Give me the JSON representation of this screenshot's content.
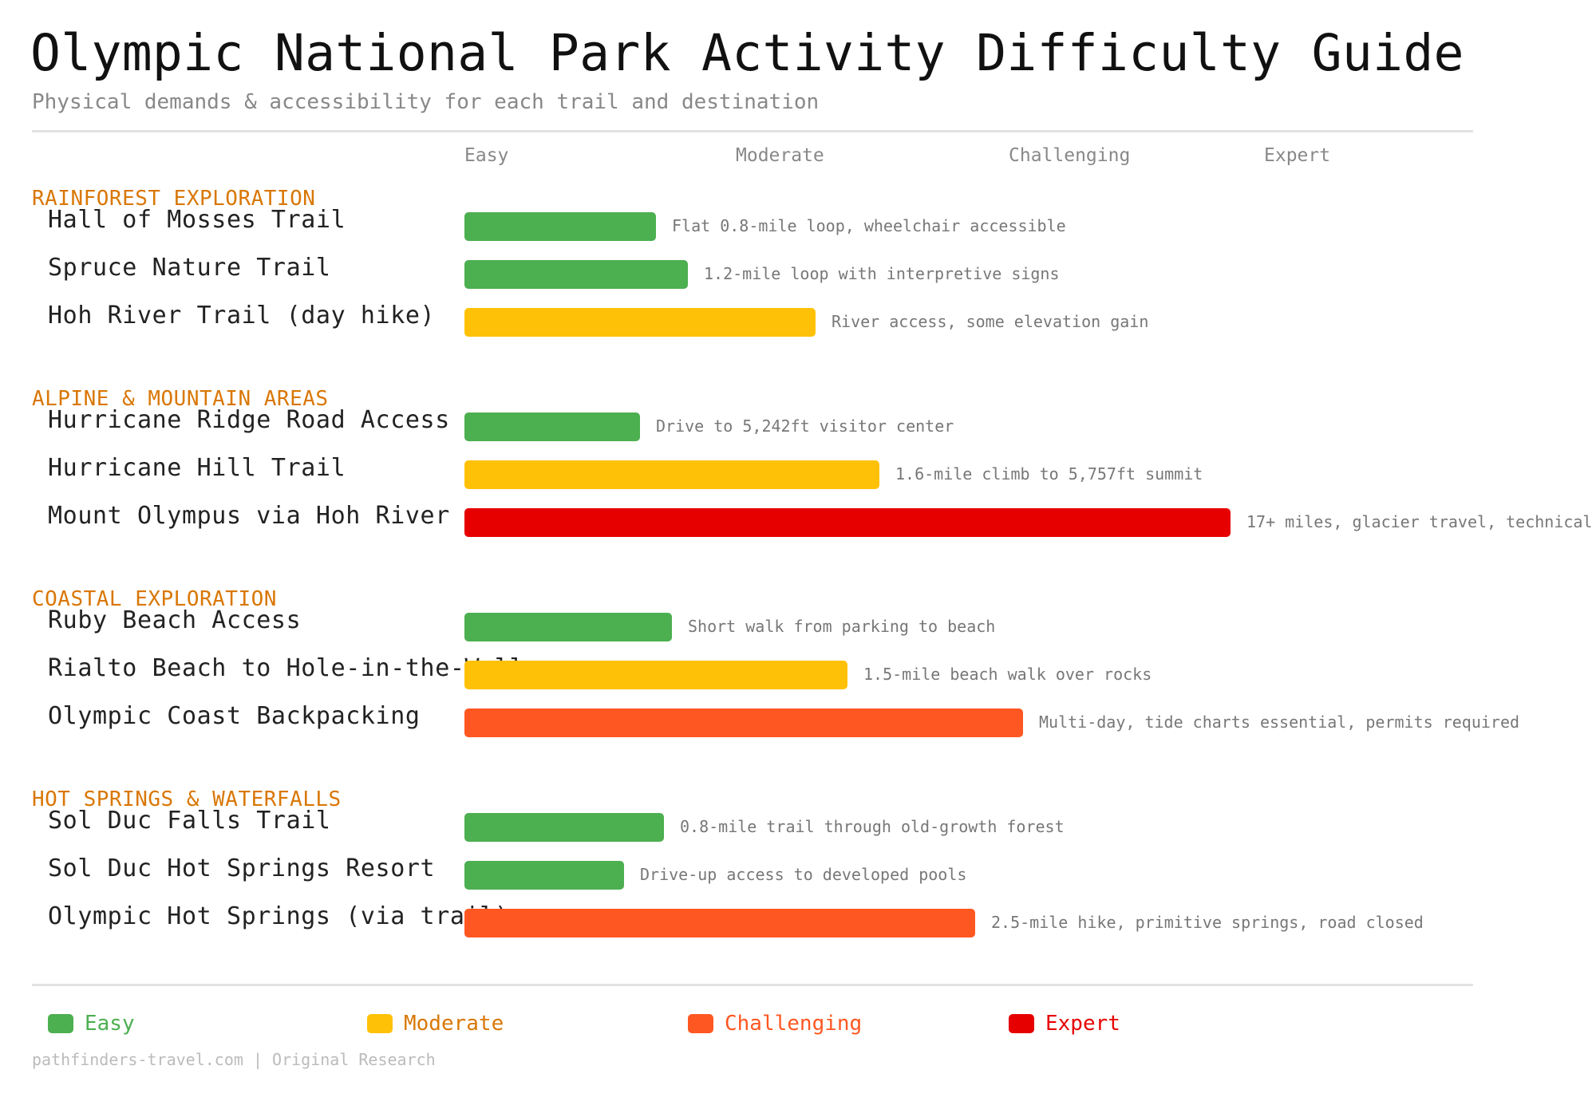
{
  "title": "Olympic National Park Activity Difficulty Guide",
  "subtitle": "Physical demands & accessibility for each trail and destination",
  "chart_data": {
    "type": "bar",
    "orientation": "horizontal",
    "title": "Olympic National Park Activity Difficulty Guide",
    "subtitle": "Physical demands & accessibility for each trail and destination",
    "scale_labels": [
      "Easy",
      "Moderate",
      "Challenging",
      "Expert"
    ],
    "xlim": [
      0,
      100
    ],
    "grid": false,
    "legend_placement": "bottom",
    "level_colors": {
      "Easy": "#4caf50",
      "Moderate": "#ffc107",
      "Challenging": "#ff5722",
      "Expert": "#e60000"
    },
    "legend_text_colors": {
      "Easy": "#4caf50",
      "Moderate": "#d97706",
      "Challenging": "#ff5722",
      "Expert": "#e60000"
    },
    "section_color": "#d97706",
    "sections": [
      {
        "name": "RAINFOREST EXPLORATION",
        "items": [
          {
            "name": "Hall of Mosses Trail",
            "level": "Easy",
            "value": 24,
            "note": "Flat 0.8-mile loop, wheelchair accessible"
          },
          {
            "name": "Spruce Nature Trail",
            "level": "Easy",
            "value": 28,
            "note": "1.2-mile loop with interpretive signs"
          },
          {
            "name": "Hoh River Trail (day hike)",
            "level": "Moderate",
            "value": 44,
            "note": "River access, some elevation gain"
          }
        ]
      },
      {
        "name": "ALPINE & MOUNTAIN AREAS",
        "items": [
          {
            "name": "Hurricane Ridge Road Access",
            "level": "Easy",
            "value": 22,
            "note": "Drive to 5,242ft visitor center"
          },
          {
            "name": "Hurricane Hill Trail",
            "level": "Moderate",
            "value": 52,
            "note": "1.6-mile climb to 5,757ft summit"
          },
          {
            "name": "Mount Olympus via Hoh River",
            "level": "Expert",
            "value": 96,
            "note": "17+ miles, glacier travel, technical"
          }
        ]
      },
      {
        "name": "COASTAL EXPLORATION",
        "items": [
          {
            "name": "Ruby Beach Access",
            "level": "Easy",
            "value": 26,
            "note": "Short walk from parking to beach"
          },
          {
            "name": "Rialto Beach to Hole-in-the-Wall",
            "level": "Moderate",
            "value": 48,
            "note": "1.5-mile beach walk over rocks"
          },
          {
            "name": "Olympic Coast Backpacking",
            "level": "Challenging",
            "value": 70,
            "note": "Multi-day, tide charts essential, permits required"
          }
        ]
      },
      {
        "name": "HOT SPRINGS & WATERFALLS",
        "items": [
          {
            "name": "Sol Duc Falls Trail",
            "level": "Easy",
            "value": 25,
            "note": "0.8-mile trail through old-growth forest"
          },
          {
            "name": "Sol Duc Hot Springs Resort",
            "level": "Easy",
            "value": 20,
            "note": "Drive-up access to developed pools"
          },
          {
            "name": "Olympic Hot Springs (via trail)",
            "level": "Challenging",
            "value": 64,
            "note": "2.5-mile hike, primitive springs, road closed"
          }
        ]
      }
    ]
  },
  "legend": [
    "Easy",
    "Moderate",
    "Challenging",
    "Expert"
  ],
  "footer": "pathfinders-travel.com | Original Research"
}
